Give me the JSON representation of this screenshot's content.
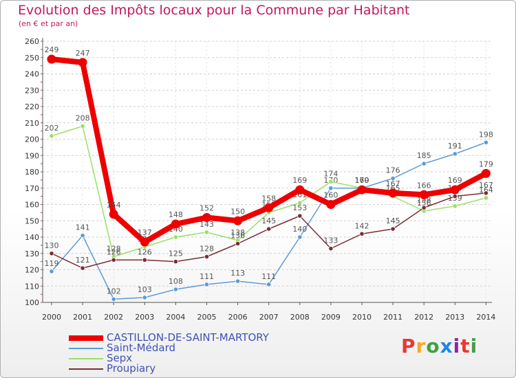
{
  "title": "Evolution des Impôts locaux pour la Commune par Habitant",
  "subtitle": "(en € et par an)",
  "logo_text": "Proxiti",
  "chart_data": {
    "type": "line",
    "title": "Evolution des Impôts locaux pour la Commune par Habitant",
    "subtitle": "(en € et par an)",
    "x": [
      2000,
      2001,
      2002,
      2003,
      2004,
      2005,
      2006,
      2007,
      2008,
      2009,
      2010,
      2011,
      2012,
      2013,
      2014
    ],
    "ylim": [
      100,
      260
    ],
    "yticks": [
      100,
      110,
      120,
      130,
      140,
      150,
      160,
      170,
      180,
      190,
      200,
      210,
      220,
      230,
      240,
      250,
      260
    ],
    "grid": "horizontal dashed",
    "legend_position": "bottom-left",
    "series": [
      {
        "name": "CASTILLON-DE-SAINT-MARTORY",
        "color": "#ee0000",
        "emphasis": "thick",
        "values": [
          249,
          247,
          154,
          137,
          148,
          152,
          150,
          158,
          169,
          160,
          169,
          167,
          166,
          169,
          179
        ]
      },
      {
        "name": "Saint-Médard",
        "color": "#5b9bd5",
        "emphasis": "thin",
        "values": [
          119,
          141,
          102,
          103,
          108,
          111,
          113,
          111,
          140,
          170,
          170,
          176,
          185,
          191,
          198
        ]
      },
      {
        "name": "Sepx",
        "color": "#99e066",
        "emphasis": "thin",
        "values": [
          202,
          208,
          128,
          134,
          140,
          143,
          138,
          155,
          161,
          174,
          170,
          165,
          156,
          159,
          164
        ]
      },
      {
        "name": "Proupiary",
        "color": "#7b2c32",
        "emphasis": "thin",
        "values": [
          130,
          121,
          126,
          126,
          125,
          128,
          136,
          145,
          153,
          133,
          142,
          145,
          158,
          165,
          167
        ]
      }
    ]
  }
}
